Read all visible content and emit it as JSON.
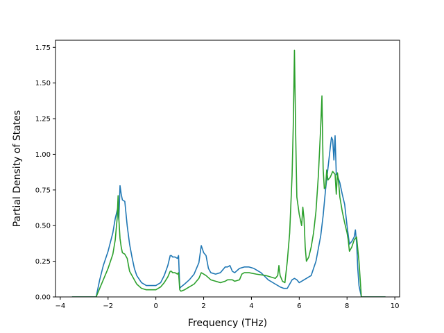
{
  "chart_data": {
    "type": "line",
    "title": "",
    "xlabel": "Frequency (THz)",
    "ylabel": "Partial Density of States",
    "xlim": [
      -4.2,
      10.2
    ],
    "ylim": [
      0,
      1.8
    ],
    "xticks": [
      -4,
      -2,
      0,
      2,
      4,
      6,
      8,
      10
    ],
    "xtick_labels": [
      "−4",
      "−2",
      "0",
      "2",
      "4",
      "6",
      "8",
      "10"
    ],
    "yticks": [
      0.0,
      0.25,
      0.5,
      0.75,
      1.0,
      1.25,
      1.5,
      1.75
    ],
    "ytick_labels": [
      "0.00",
      "0.25",
      "0.50",
      "0.75",
      "1.00",
      "1.25",
      "1.50",
      "1.75"
    ],
    "grid": false,
    "legend": "none",
    "series": [
      {
        "color": "#1f77b4",
        "x": [
          -3.5,
          -2.5,
          -2.35,
          -2.2,
          -2.0,
          -1.8,
          -1.7,
          -1.6,
          -1.55,
          -1.5,
          -1.45,
          -1.4,
          -1.3,
          -1.2,
          -1.1,
          -1.0,
          -0.9,
          -0.8,
          -0.6,
          -0.4,
          -0.2,
          0.0,
          0.2,
          0.35,
          0.5,
          0.6,
          0.65,
          0.7,
          0.8,
          0.9,
          0.95,
          1.0,
          1.05,
          1.2,
          1.4,
          1.6,
          1.8,
          1.9,
          2.0,
          2.1,
          2.2,
          2.3,
          2.5,
          2.7,
          2.9,
          3.0,
          3.1,
          3.2,
          3.3,
          3.5,
          3.7,
          3.9,
          4.1,
          4.4,
          4.7,
          5.0,
          5.2,
          5.35,
          5.5,
          5.6,
          5.7,
          5.8,
          5.9,
          6.0,
          6.1,
          6.2,
          6.3,
          6.4,
          6.5,
          6.6,
          6.7,
          6.8,
          6.9,
          7.0,
          7.1,
          7.2,
          7.3,
          7.35,
          7.4,
          7.45,
          7.5,
          7.55,
          7.6,
          7.7,
          7.8,
          7.9,
          8.0,
          8.1,
          8.2,
          8.3,
          8.35,
          8.4,
          8.45,
          8.5,
          8.6,
          9.6
        ],
        "y": [
          0.0,
          0.0,
          0.12,
          0.22,
          0.32,
          0.45,
          0.55,
          0.62,
          0.54,
          0.78,
          0.72,
          0.68,
          0.67,
          0.5,
          0.37,
          0.28,
          0.2,
          0.15,
          0.1,
          0.08,
          0.08,
          0.08,
          0.1,
          0.15,
          0.22,
          0.29,
          0.29,
          0.28,
          0.28,
          0.27,
          0.29,
          0.06,
          0.07,
          0.09,
          0.12,
          0.16,
          0.24,
          0.36,
          0.31,
          0.29,
          0.2,
          0.17,
          0.16,
          0.17,
          0.21,
          0.21,
          0.22,
          0.18,
          0.17,
          0.2,
          0.21,
          0.21,
          0.2,
          0.17,
          0.12,
          0.09,
          0.07,
          0.06,
          0.06,
          0.09,
          0.12,
          0.13,
          0.12,
          0.1,
          0.11,
          0.12,
          0.13,
          0.14,
          0.15,
          0.2,
          0.25,
          0.34,
          0.43,
          0.57,
          0.75,
          0.9,
          1.05,
          1.12,
          1.1,
          0.96,
          1.13,
          0.86,
          0.85,
          0.8,
          0.72,
          0.65,
          0.5,
          0.37,
          0.39,
          0.42,
          0.47,
          0.38,
          0.2,
          0.08,
          0.0,
          0.0
        ]
      },
      {
        "color": "#2ca02c",
        "x": [
          -3.5,
          -2.5,
          -2.35,
          -2.2,
          -2.0,
          -1.8,
          -1.7,
          -1.62,
          -1.58,
          -1.55,
          -1.5,
          -1.45,
          -1.4,
          -1.3,
          -1.2,
          -1.1,
          -1.0,
          -0.9,
          -0.8,
          -0.6,
          -0.4,
          -0.2,
          0.0,
          0.2,
          0.35,
          0.5,
          0.6,
          0.65,
          0.7,
          0.8,
          0.9,
          0.95,
          1.0,
          1.05,
          1.2,
          1.4,
          1.6,
          1.8,
          1.9,
          2.0,
          2.1,
          2.3,
          2.5,
          2.7,
          2.9,
          3.0,
          3.1,
          3.2,
          3.3,
          3.5,
          3.6,
          3.7,
          3.9,
          4.2,
          4.6,
          5.0,
          5.1,
          5.15,
          5.2,
          5.3,
          5.4,
          5.5,
          5.6,
          5.7,
          5.75,
          5.8,
          5.85,
          5.9,
          6.0,
          6.1,
          6.15,
          6.2,
          6.25,
          6.3,
          6.4,
          6.5,
          6.6,
          6.7,
          6.8,
          6.9,
          6.95,
          7.0,
          7.05,
          7.1,
          7.15,
          7.2,
          7.3,
          7.4,
          7.5,
          7.55,
          7.6,
          7.65,
          7.7,
          7.8,
          7.9,
          8.0,
          8.05,
          8.1,
          8.2,
          8.3,
          8.4,
          8.5,
          8.6,
          9.6
        ],
        "y": [
          0.0,
          0.0,
          0.06,
          0.12,
          0.2,
          0.3,
          0.4,
          0.55,
          0.71,
          0.55,
          0.41,
          0.35,
          0.31,
          0.3,
          0.27,
          0.18,
          0.15,
          0.12,
          0.09,
          0.06,
          0.05,
          0.05,
          0.05,
          0.07,
          0.1,
          0.14,
          0.18,
          0.18,
          0.17,
          0.17,
          0.16,
          0.17,
          0.05,
          0.04,
          0.05,
          0.07,
          0.09,
          0.13,
          0.17,
          0.16,
          0.15,
          0.12,
          0.11,
          0.1,
          0.11,
          0.12,
          0.12,
          0.12,
          0.11,
          0.12,
          0.16,
          0.17,
          0.17,
          0.16,
          0.15,
          0.13,
          0.15,
          0.22,
          0.15,
          0.11,
          0.1,
          0.25,
          0.45,
          0.85,
          1.2,
          1.73,
          1.15,
          0.7,
          0.58,
          0.5,
          0.63,
          0.55,
          0.35,
          0.25,
          0.28,
          0.35,
          0.45,
          0.6,
          0.85,
          1.2,
          1.41,
          0.9,
          0.76,
          0.77,
          0.89,
          0.82,
          0.84,
          0.88,
          0.86,
          0.72,
          0.87,
          0.8,
          0.7,
          0.6,
          0.52,
          0.45,
          0.4,
          0.32,
          0.35,
          0.4,
          0.42,
          0.25,
          0.0,
          0.0
        ]
      }
    ]
  }
}
